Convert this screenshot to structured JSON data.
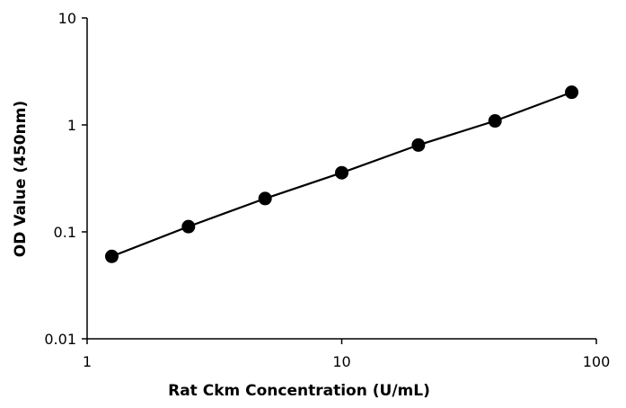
{
  "chart_data": {
    "type": "scatter",
    "title": "",
    "xlabel": "Rat Ckm Concentration  (U/mL)",
    "ylabel": "OD Value (450nm)",
    "x_scale": "log",
    "y_scale": "log",
    "xlim": [
      1,
      100
    ],
    "ylim": [
      0.01,
      10
    ],
    "x_ticks": [
      {
        "value": 1,
        "label": "1"
      },
      {
        "value": 10,
        "label": "10"
      },
      {
        "value": 100,
        "label": "100"
      }
    ],
    "y_ticks": [
      {
        "value": 0.01,
        "label": "0.01"
      },
      {
        "value": 0.1,
        "label": "0.1"
      },
      {
        "value": 1,
        "label": "1"
      },
      {
        "value": 10,
        "label": "10"
      }
    ],
    "grid": false,
    "legend": "none",
    "series": [
      {
        "x": [
          1.25,
          2.5,
          5,
          10,
          20,
          40,
          80
        ],
        "y": [
          0.059,
          0.112,
          0.205,
          0.357,
          0.648,
          1.09,
          2.02
        ],
        "marker": "circle",
        "line": true,
        "color": "#000000"
      }
    ]
  }
}
